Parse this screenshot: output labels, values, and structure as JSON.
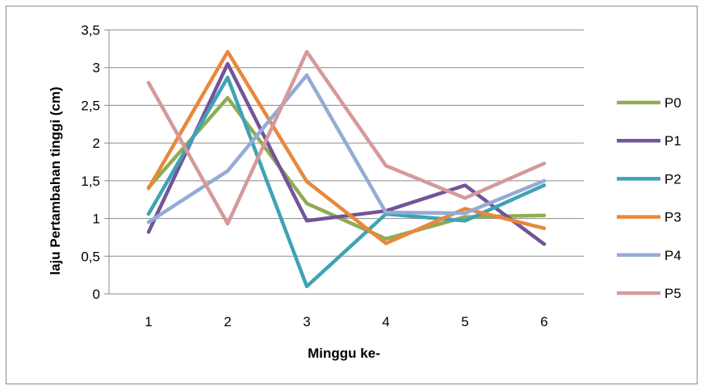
{
  "chart_data": {
    "type": "line",
    "categories": [
      "1",
      "2",
      "3",
      "4",
      "5",
      "6"
    ],
    "series": [
      {
        "name": "P0",
        "color": "#8fac52",
        "values": [
          1.41,
          2.6,
          1.2,
          0.73,
          1.02,
          1.04
        ]
      },
      {
        "name": "P1",
        "color": "#73539a",
        "values": [
          0.82,
          3.05,
          0.97,
          1.1,
          1.44,
          0.66
        ]
      },
      {
        "name": "P2",
        "color": "#3fa2b5",
        "values": [
          1.06,
          2.87,
          0.1,
          1.06,
          0.97,
          1.44
        ]
      },
      {
        "name": "P3",
        "color": "#e8883a",
        "values": [
          1.4,
          3.21,
          1.49,
          0.67,
          1.13,
          0.87
        ]
      },
      {
        "name": "P4",
        "color": "#94abd4",
        "values": [
          0.95,
          1.63,
          2.9,
          1.08,
          1.07,
          1.5
        ]
      },
      {
        "name": "P5",
        "color": "#d6999a",
        "values": [
          2.8,
          0.93,
          3.21,
          1.7,
          1.27,
          1.73
        ]
      }
    ],
    "y_ticks": [
      "0",
      "0,5",
      "1",
      "1,5",
      "2",
      "2,5",
      "3",
      "3,5"
    ],
    "ylim": [
      0,
      3.5
    ],
    "xlabel": "Minggu ke-",
    "ylabel": "laju Pertambahan tinggi (cm)",
    "grid": true,
    "legend_position": "right"
  }
}
